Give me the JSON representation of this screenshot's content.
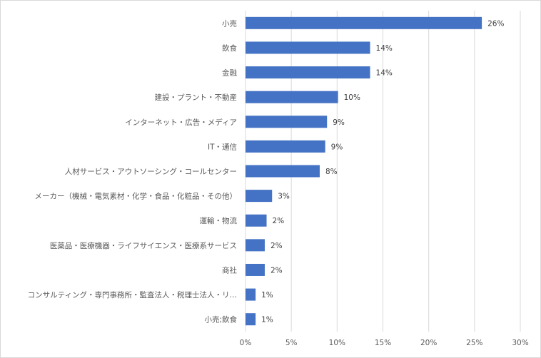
{
  "chart_data": {
    "type": "bar",
    "orientation": "horizontal",
    "categories": [
      "小売",
      "飲食",
      "金融",
      "建設・プラント・不動産",
      "インターネット・広告・メディア",
      "IT・通信",
      "人材サービス・アウトソーシング・コールセンター",
      "メーカー（機械・電気素材・化学・食品・化粧品・その他）",
      "運輸・物流",
      "医薬品・医療機器・ライフサイエンス・医療系サービス",
      "商社",
      "コンサルティング・専門事務所・監査法人・税理士法人・リ…",
      "小売;飲食"
    ],
    "values": [
      0.258,
      0.136,
      0.136,
      0.101,
      0.089,
      0.087,
      0.081,
      0.029,
      0.023,
      0.021,
      0.021,
      0.011,
      0.011
    ],
    "data_labels": [
      "26%",
      "14%",
      "14%",
      "10%",
      "9%",
      "9%",
      "8%",
      "3%",
      "2%",
      "2%",
      "2%",
      "1%",
      "1%"
    ],
    "x_ticks": [
      "0%",
      "5%",
      "10%",
      "15%",
      "20%",
      "25%",
      "30%"
    ],
    "xlim": [
      0,
      0.3
    ],
    "grid": "vertical",
    "legend": "none",
    "bar_color": "#4472c4",
    "title": "",
    "xlabel": "",
    "ylabel": ""
  }
}
